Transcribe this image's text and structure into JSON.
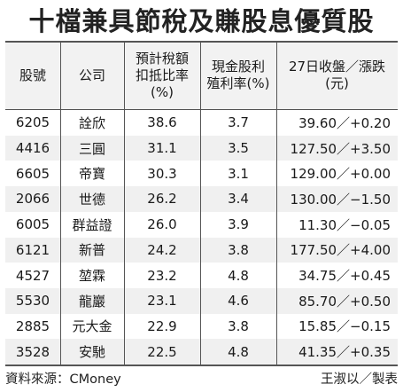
{
  "title": "十檔兼具節稅及賺股息優質股",
  "headers": {
    "code": "股號",
    "company": "公司",
    "tax_ratio": "預計稅額\n扣抵比率\n(%)",
    "yield": "現金股利\n殖利率(%)",
    "price": "27日收盤／漲跌\n(元)"
  },
  "rows": [
    {
      "code": "6205",
      "company": "詮欣",
      "tax_ratio": "38.6",
      "yield": "3.7",
      "price": "39.60／+0.20"
    },
    {
      "code": "4416",
      "company": "三圓",
      "tax_ratio": "31.1",
      "yield": "3.5",
      "price": "127.50／+3.50"
    },
    {
      "code": "6605",
      "company": "帝寶",
      "tax_ratio": "30.3",
      "yield": "3.1",
      "price": "129.00／+0.00"
    },
    {
      "code": "2066",
      "company": "世德",
      "tax_ratio": "26.2",
      "yield": "3.4",
      "price": "130.00／−1.50"
    },
    {
      "code": "6005",
      "company": "群益證",
      "tax_ratio": "26.0",
      "yield": "3.9",
      "price": "11.30／−0.05"
    },
    {
      "code": "6121",
      "company": "新普",
      "tax_ratio": "24.2",
      "yield": "3.8",
      "price": "177.50／+4.00"
    },
    {
      "code": "4527",
      "company": "堃霖",
      "tax_ratio": "23.2",
      "yield": "4.8",
      "price": "34.75／+0.45"
    },
    {
      "code": "5530",
      "company": "龍巖",
      "tax_ratio": "23.1",
      "yield": "4.6",
      "price": "85.70／+0.50"
    },
    {
      "code": "2885",
      "company": "元大金",
      "tax_ratio": "22.9",
      "yield": "3.8",
      "price": "15.85／−0.15"
    },
    {
      "code": "3528",
      "company": "安馳",
      "tax_ratio": "22.5",
      "yield": "4.8",
      "price": "41.35／+0.35"
    }
  ],
  "footer": {
    "source": "資料來源：CMoney",
    "credit": "王淑以／製表"
  }
}
